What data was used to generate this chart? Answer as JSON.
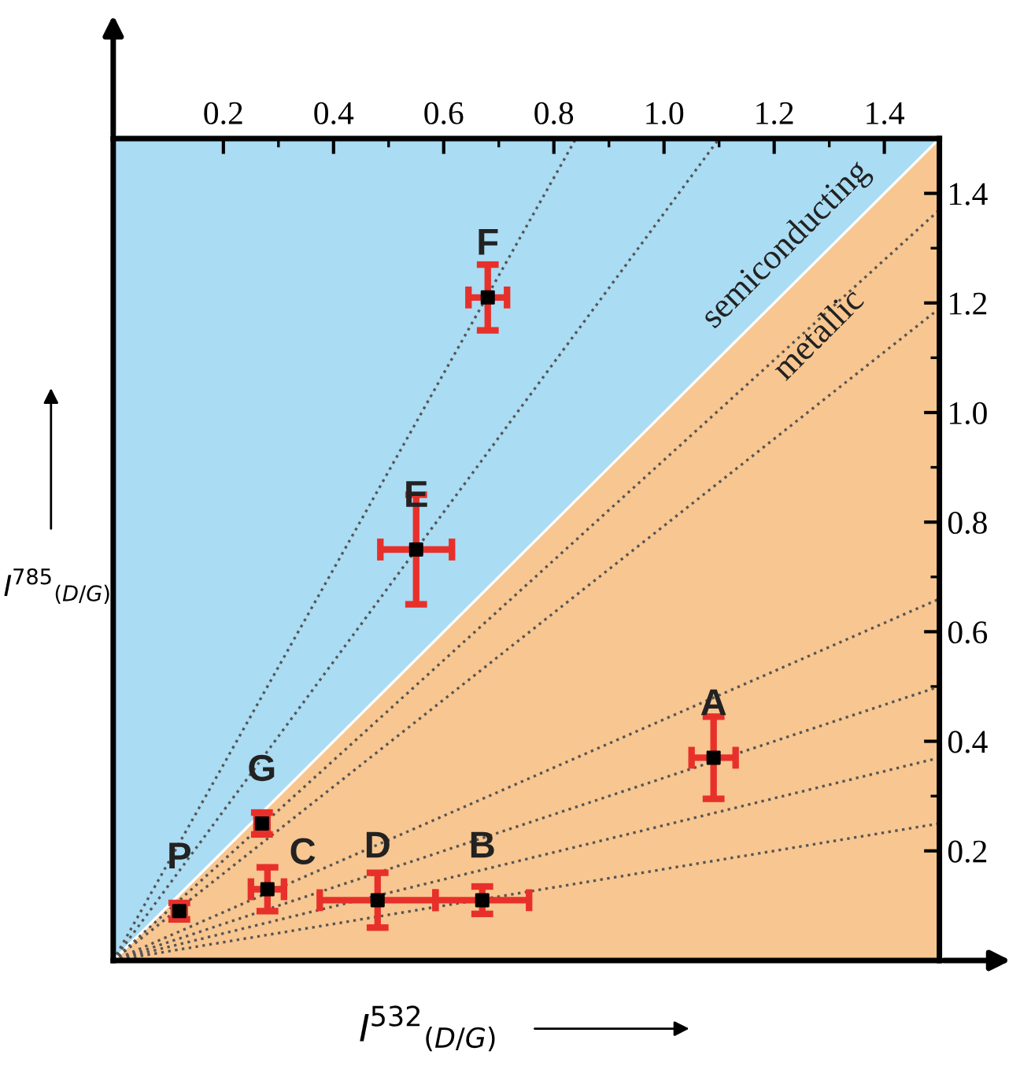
{
  "chart_data": {
    "type": "scatter",
    "xlabel": "I$^{532}$$_{(D/G)}$",
    "ylabel": "I$^{785}$$_{(D/G)}$",
    "xlim": [
      0,
      1.5
    ],
    "xticks": [
      0.2,
      0.4,
      0.6,
      0.8,
      {
        "value": 1,
        "label": "1.0"
      },
      1.2,
      1.4
    ],
    "ylim": [
      0,
      1.5
    ],
    "yticks": [
      0.2,
      0.4,
      0.6,
      0.8,
      {
        "value": 1,
        "label": "1.0"
      },
      1.2,
      1.4
    ],
    "grid": false,
    "series": [
      {
        "type": "line",
        "color": "#ffffff",
        "line_style": "solid",
        "x": [
          0,
          1.5
        ],
        "values": [
          0,
          1.5
        ]
      },
      {
        "type": "line",
        "color": "#555555",
        "line_style": "dotted",
        "x": [
          0,
          0.84
        ],
        "values": [
          0,
          1.5
        ]
      },
      {
        "type": "line",
        "color": "#555555",
        "line_style": "dotted",
        "x": [
          0,
          1.1
        ],
        "values": [
          0,
          1.5
        ]
      },
      {
        "type": "line",
        "color": "#555555",
        "line_style": "dotted",
        "x": [
          0,
          1.5
        ],
        "values": [
          0,
          1.37
        ]
      },
      {
        "type": "line",
        "color": "#555555",
        "line_style": "dotted",
        "x": [
          0,
          1.5
        ],
        "values": [
          0,
          1.19
        ]
      },
      {
        "type": "line",
        "color": "#555555",
        "line_style": "dotted",
        "x": [
          0,
          1.5
        ],
        "values": [
          0,
          0.66
        ]
      },
      {
        "type": "line",
        "color": "#555555",
        "line_style": "dotted",
        "x": [
          0,
          1.5
        ],
        "values": [
          0,
          0.5
        ]
      },
      {
        "type": "line",
        "color": "#555555",
        "line_style": "dotted",
        "x": [
          0,
          1.5
        ],
        "values": [
          0,
          0.37
        ]
      },
      {
        "type": "line",
        "color": "#555555",
        "line_style": "dotted",
        "x": [
          0,
          1.5
        ],
        "values": [
          0,
          0.25
        ]
      },
      {
        "color": "#000000",
        "marker": "square",
        "x": [
          1.09,
          0.67,
          0.28,
          0.48,
          0.55,
          0.68,
          0.27,
          0.12
        ],
        "values": [
          0.37,
          0.11,
          0.13,
          0.11,
          0.75,
          1.21,
          0.25,
          0.09
        ],
        "errors": [
          0.075,
          0.025,
          0.04,
          0.05,
          0.1,
          0.06,
          0.02,
          0.015
        ],
        "xerrors": [
          0.04,
          0.085,
          0.03,
          0.105,
          0.065,
          0.035,
          0.01,
          0.01
        ]
      }
    ],
    "annotations": [
      {
        "text": "A",
        "x": 1.09,
        "y": 0.37
      },
      {
        "text": "B",
        "x": 0.67,
        "y": 0.11
      },
      {
        "text": "C",
        "x": 0.28,
        "y": 0.13
      },
      {
        "text": "D",
        "x": 0.48,
        "y": 0.11
      },
      {
        "text": "E",
        "x": 0.55,
        "y": 0.75
      },
      {
        "text": "F",
        "x": 0.68,
        "y": 1.21
      },
      {
        "text": "G",
        "x": 0.27,
        "y": 0.25
      },
      {
        "text": "P",
        "x": 0.12,
        "y": 0.09
      },
      "semiconducting",
      "metallic"
    ]
  }
}
